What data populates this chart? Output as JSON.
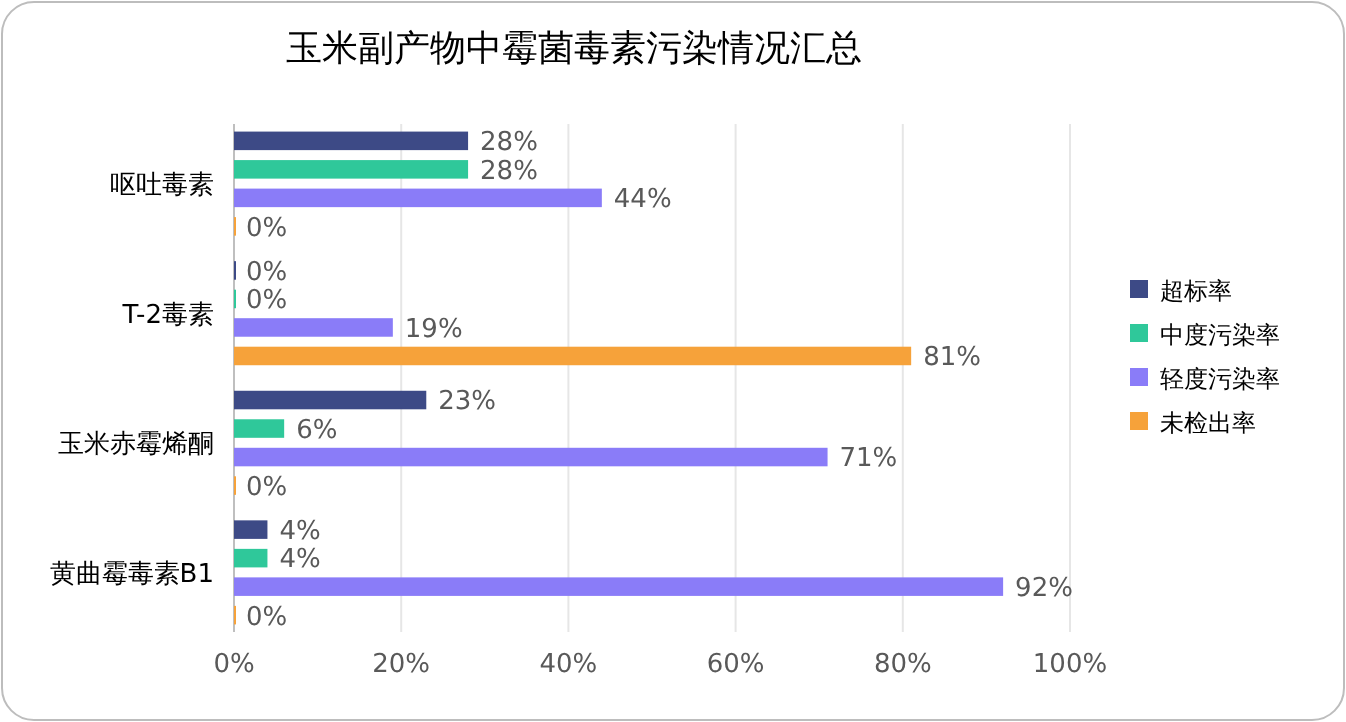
{
  "chart_data": {
    "type": "bar",
    "orientation": "horizontal",
    "title": "玉米副产物中霉菌毒素污染情况汇总",
    "categories": [
      "呕吐毒素",
      "T-2毒素",
      "玉米赤霉烯酮",
      "黄曲霉毒素B1"
    ],
    "series": [
      {
        "name": "超标率",
        "color": "#3d4a86",
        "values": [
          28,
          0,
          23,
          4
        ],
        "value_labels": [
          "28%",
          "0%",
          "23%",
          "4%"
        ]
      },
      {
        "name": "中度污染率",
        "color": "#2fc89a",
        "values": [
          28,
          0,
          6,
          4
        ],
        "value_labels": [
          "28%",
          "0%",
          "6%",
          "4%"
        ]
      },
      {
        "name": "轻度污染率",
        "color": "#8a7cf8",
        "values": [
          44,
          19,
          71,
          92
        ],
        "value_labels": [
          "44%",
          "19%",
          "71%",
          "92%"
        ]
      },
      {
        "name": "未检出率",
        "color": "#f6a23a",
        "values": [
          0,
          81,
          0,
          0
        ],
        "value_labels": [
          "0%",
          "81%",
          "0%",
          "0%"
        ]
      }
    ],
    "xlim": [
      0,
      100
    ],
    "xticks": [
      {
        "value": 0,
        "label": "0%"
      },
      {
        "value": 20,
        "label": "20%"
      },
      {
        "value": 40,
        "label": "40%"
      },
      {
        "value": 60,
        "label": "60%"
      },
      {
        "value": 80,
        "label": "80%"
      },
      {
        "value": 100,
        "label": "100%"
      }
    ],
    "grid": "x",
    "legend": "right"
  }
}
